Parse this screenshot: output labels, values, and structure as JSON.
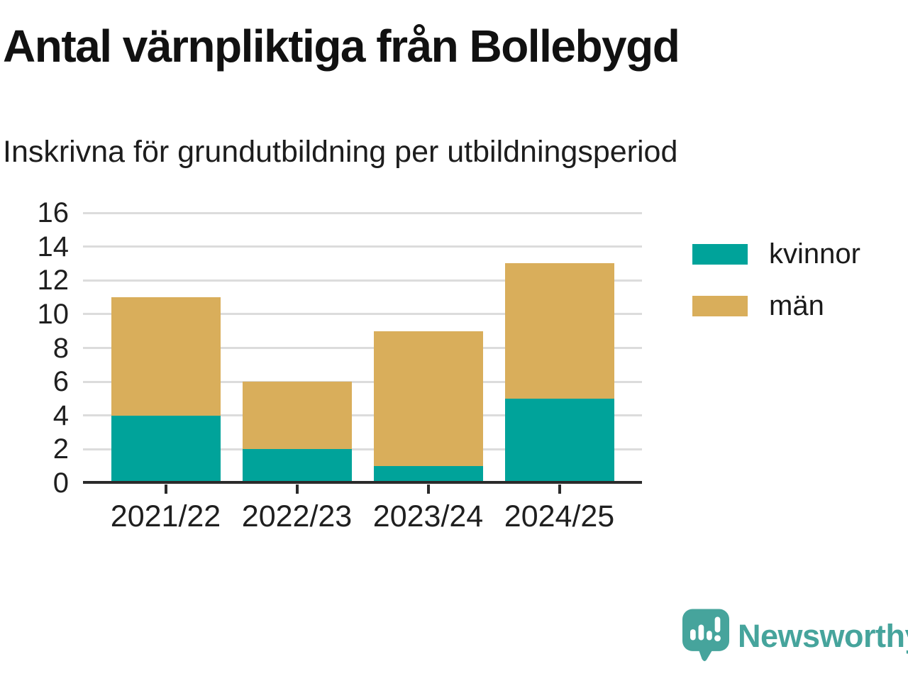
{
  "header": {
    "title": "Antal värnpliktiga från Bollebygd",
    "subtitle": "Inskrivna för grundutbildning per utbildningsperiod"
  },
  "chart_data": {
    "type": "bar",
    "stacked": true,
    "title": "Antal värnpliktiga från Bollebygd",
    "subtitle": "Inskrivna för grundutbildning per utbildningsperiod",
    "categories": [
      "2021/22",
      "2022/23",
      "2023/24",
      "2024/25"
    ],
    "series": [
      {
        "name": "kvinnor",
        "color": "#00a39a",
        "values": [
          4,
          2,
          1,
          5
        ]
      },
      {
        "name": "män",
        "color": "#d9ae5b",
        "values": [
          7,
          4,
          8,
          8
        ]
      }
    ],
    "totals": [
      11,
      6,
      9,
      13
    ],
    "xlabel": "",
    "ylabel": "",
    "ylim": [
      0,
      16
    ],
    "ytick_step": 2,
    "grid": true,
    "legend_position": "right"
  },
  "footer": {
    "brand_name": "Newsworthy"
  },
  "colors": {
    "axis": "#2b2b2b",
    "grid": "#dcdcdc",
    "brand": "#46a49c"
  }
}
